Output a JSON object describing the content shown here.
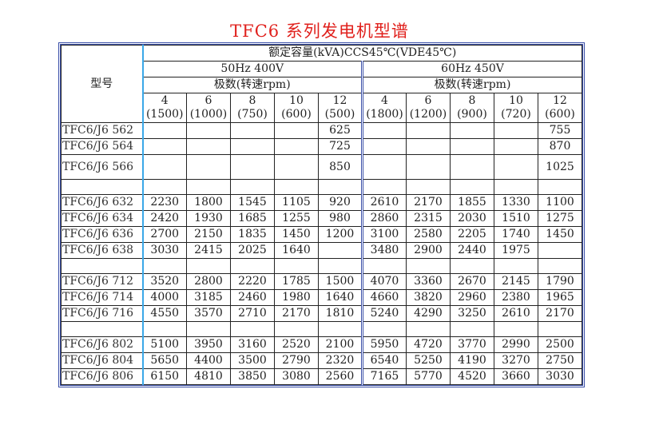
{
  "title": "TFC6 系列发电机型谱",
  "table": {
    "model_header": "型号",
    "capacity_header": "额定容量(kVA)CCS45℃(VDE45℃)",
    "groups": [
      {
        "label": "50Hz 400V",
        "sub": "极数(转速rpm)",
        "columns": [
          {
            "poles": "4",
            "rpm": "(1500)"
          },
          {
            "poles": "6",
            "rpm": "(1000)"
          },
          {
            "poles": "8",
            "rpm": "(750)"
          },
          {
            "poles": "10",
            "rpm": "(600)"
          },
          {
            "poles": "12",
            "rpm": "(500)"
          }
        ]
      },
      {
        "label": "60Hz 450V",
        "sub": "极数(转速rpm)",
        "columns": [
          {
            "poles": "4",
            "rpm": "(1800)"
          },
          {
            "poles": "6",
            "rpm": "(1200)"
          },
          {
            "poles": "8",
            "rpm": "(900)"
          },
          {
            "poles": "10",
            "rpm": "(720)"
          },
          {
            "poles": "12",
            "rpm": "(600)"
          }
        ]
      }
    ],
    "rows": [
      {
        "model": "TFC6/J6 562",
        "values": [
          "",
          "",
          "",
          "",
          "625",
          "",
          "",
          "",
          "",
          "755"
        ]
      },
      {
        "model": "TFC6/J6 564",
        "values": [
          "",
          "",
          "",
          "",
          "725",
          "",
          "",
          "",
          "",
          "870"
        ]
      },
      {
        "model": "TFC6/J6 566",
        "values": [
          "",
          "",
          "",
          "",
          "850",
          "",
          "",
          "",
          "",
          "1025"
        ],
        "tall": true
      },
      {
        "model": "",
        "values": [
          "",
          "",
          "",
          "",
          "",
          "",
          "",
          "",
          "",
          ""
        ],
        "blank": true
      },
      {
        "model": "TFC6/J6 632",
        "values": [
          "2230",
          "1800",
          "1545",
          "1105",
          "920",
          "2610",
          "2170",
          "1855",
          "1330",
          "1100"
        ]
      },
      {
        "model": "TFC6/J6 634",
        "values": [
          "2420",
          "1930",
          "1685",
          "1255",
          "980",
          "2860",
          "2315",
          "2030",
          "1510",
          "1275"
        ]
      },
      {
        "model": "TFC6/J6 636",
        "values": [
          "2700",
          "2150",
          "1835",
          "1450",
          "1200",
          "3100",
          "2580",
          "2205",
          "1740",
          "1450"
        ]
      },
      {
        "model": "TFC6/J6 638",
        "values": [
          "3030",
          "2415",
          "2025",
          "1640",
          "",
          "3480",
          "2900",
          "2440",
          "1975",
          ""
        ]
      },
      {
        "model": "",
        "values": [
          "",
          "",
          "",
          "",
          "",
          "",
          "",
          "",
          "",
          ""
        ],
        "blank": true
      },
      {
        "model": "TFC6/J6 712",
        "values": [
          "3520",
          "2800",
          "2220",
          "1785",
          "1500",
          "4070",
          "3360",
          "2670",
          "2145",
          "1790"
        ]
      },
      {
        "model": "TFC6/J6 714",
        "values": [
          "4000",
          "3185",
          "2460",
          "1980",
          "1640",
          "4660",
          "3820",
          "2960",
          "2380",
          "1965"
        ]
      },
      {
        "model": "TFC6/J6 716",
        "values": [
          "4550",
          "3570",
          "2710",
          "2170",
          "1810",
          "5240",
          "4290",
          "3250",
          "2610",
          "2170"
        ]
      },
      {
        "model": "",
        "values": [
          "",
          "",
          "",
          "",
          "",
          "",
          "",
          "",
          "",
          ""
        ],
        "blank": true
      },
      {
        "model": "TFC6/J6 802",
        "values": [
          "5100",
          "3950",
          "3160",
          "2520",
          "2100",
          "5950",
          "4720",
          "3770",
          "2990",
          "2500"
        ]
      },
      {
        "model": "TFC6/J6 804",
        "values": [
          "5650",
          "4400",
          "3500",
          "2790",
          "2320",
          "6540",
          "5250",
          "4190",
          "3270",
          "2750"
        ]
      },
      {
        "model": "TFC6/J6 806",
        "values": [
          "6150",
          "4810",
          "3850",
          "3080",
          "2560",
          "7165",
          "5770",
          "4520",
          "3660",
          "3030"
        ]
      }
    ]
  },
  "colors": {
    "title": "#e0201c",
    "outer_border": "#3a4fa8",
    "model_divider": "#3aa8e8"
  }
}
